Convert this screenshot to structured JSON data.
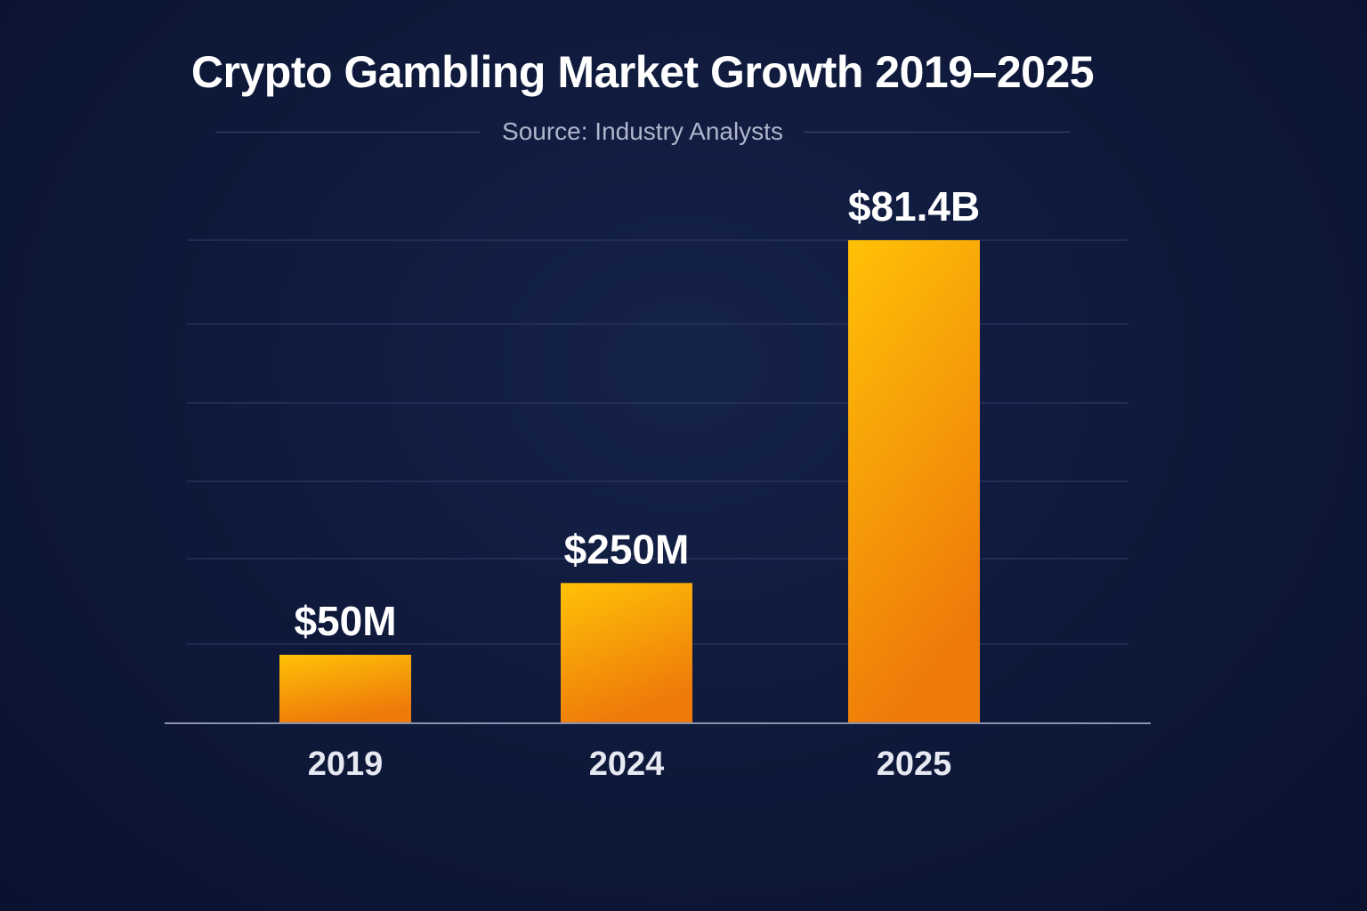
{
  "chart_data": {
    "type": "bar",
    "title": "Crypto Gambling Market Growth 2019–2025",
    "subtitle": "Source: Industry Analysts",
    "categories": [
      "2019",
      "2024",
      "2025"
    ],
    "values": [
      50,
      250,
      81400
    ],
    "value_unit": "USD millions",
    "data_labels": [
      "$50M",
      "$250M",
      "$81.4B"
    ],
    "xlabel": "",
    "ylabel": "",
    "grid": true,
    "legend": "none",
    "colors": {
      "bar_top": "#ffc107",
      "bar_bottom": "#ee7a0a",
      "background": "#0f1a3c",
      "gridline": "#3a4670"
    }
  }
}
